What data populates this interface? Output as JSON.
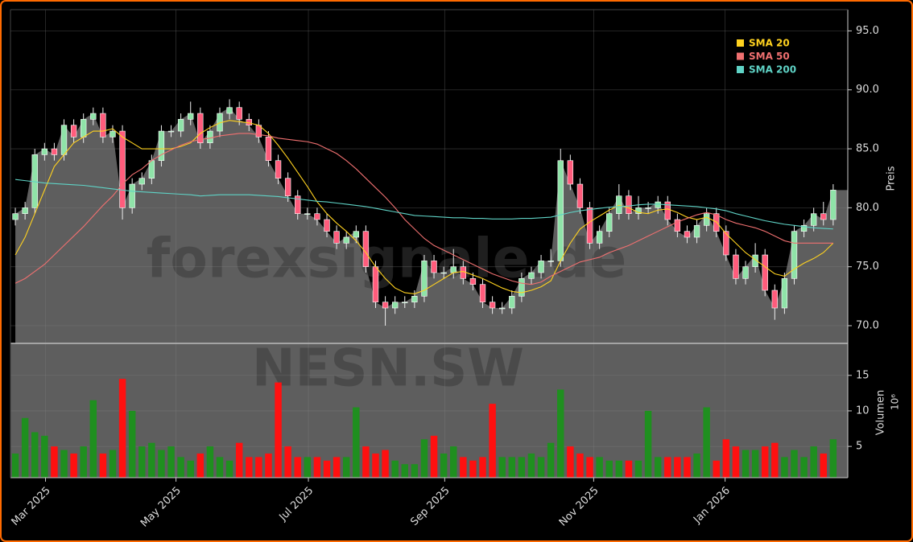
{
  "chart_data": [
    {
      "type": "candlestick",
      "open": [
        79,
        79.5,
        80,
        84.5,
        85,
        84.5,
        87,
        86,
        87.5,
        88,
        86,
        86.5,
        80,
        82,
        82.5,
        84,
        86.5,
        86.5,
        87.5,
        88,
        85.5,
        86.5,
        88,
        88.5,
        87.5,
        87,
        86,
        84,
        82.5,
        81,
        79.5,
        79.5,
        79,
        78,
        77,
        77.5,
        78,
        75,
        72,
        71.5,
        72,
        72,
        72.5,
        75.5,
        74.5,
        74.5,
        75,
        74,
        73.5,
        72,
        71.5,
        71.5,
        72.5,
        74,
        74.5,
        75.5,
        75.5,
        84,
        82,
        80,
        77,
        78,
        79.5,
        81,
        79.5,
        80,
        80,
        80.5,
        79,
        78,
        77.5,
        78.5,
        79.5,
        78,
        76,
        74,
        75,
        76,
        73,
        71.5,
        74,
        78,
        78.5,
        79.5,
        79
      ],
      "high": [
        80,
        80.5,
        85,
        85.5,
        85.5,
        87.5,
        87.5,
        88,
        88.5,
        88.5,
        87,
        87,
        82.5,
        83,
        84.5,
        87,
        87,
        88,
        89,
        88.5,
        87,
        88.5,
        89.2,
        89,
        88,
        87.5,
        86.5,
        84.5,
        83,
        81.5,
        80,
        80,
        79.5,
        78.5,
        78,
        78.5,
        78.5,
        75.5,
        72.5,
        72.5,
        72.5,
        73,
        76,
        76,
        75,
        76.5,
        75.5,
        74.5,
        74,
        72.5,
        72,
        73,
        74.5,
        75,
        76,
        76.5,
        85,
        84.5,
        82.5,
        80.5,
        78.5,
        80,
        82,
        81.5,
        81,
        80.5,
        81,
        81,
        79.5,
        78.5,
        79,
        80,
        80,
        78.5,
        76.5,
        75.5,
        77,
        76.5,
        73.5,
        74.5,
        78.5,
        79,
        80,
        80.5,
        82
      ],
      "low": [
        78.5,
        79,
        79.5,
        84,
        84,
        84,
        85.5,
        85.5,
        87,
        85.5,
        85.5,
        79,
        79.5,
        81.5,
        82,
        83.5,
        86,
        86,
        87,
        85,
        85,
        86,
        87.5,
        87,
        86.5,
        85.5,
        83.5,
        82,
        80.5,
        79,
        79,
        78.5,
        77.5,
        76.5,
        76.5,
        77,
        74.5,
        71.5,
        70,
        71,
        71.5,
        71.5,
        72,
        74,
        74,
        74,
        73.5,
        73,
        71.5,
        71,
        71,
        71,
        72,
        73.5,
        74,
        75,
        75,
        81.5,
        79.5,
        76.5,
        76.5,
        77.5,
        79,
        79,
        79,
        79.5,
        79.5,
        78.5,
        77.5,
        77,
        77,
        78,
        77.5,
        75.5,
        73.5,
        73.5,
        74.5,
        72.5,
        70.5,
        71,
        73.5,
        77.5,
        78,
        78.5,
        78.5
      ],
      "close": [
        79.5,
        80,
        84.5,
        85,
        84.5,
        87,
        86,
        87.5,
        88,
        86,
        86.5,
        80,
        82,
        82.5,
        84,
        86.5,
        86.5,
        87.5,
        88,
        85.5,
        86.5,
        88,
        88.5,
        87.5,
        87,
        86,
        84,
        82.5,
        81,
        79.5,
        79.5,
        79,
        78,
        77,
        77.5,
        78,
        75,
        72,
        71.5,
        72,
        72,
        72.5,
        75.5,
        74.5,
        74.5,
        75,
        74,
        73.5,
        72,
        71.5,
        71.5,
        72.5,
        74,
        74.5,
        75.5,
        75.5,
        84,
        82,
        80,
        77,
        78,
        79.5,
        81,
        79.5,
        80,
        80,
        80.5,
        79,
        78,
        77.5,
        78.5,
        79.5,
        78,
        76,
        74,
        75,
        76,
        73,
        71.5,
        74,
        78,
        78.5,
        79.5,
        79,
        81.5
      ],
      "up_color": "#8fe3a8",
      "down_color": "#ff5c7c",
      "area_color": "#5e5e5e",
      "series": [
        {
          "name": "SMA 20",
          "color": "#ffd21f",
          "values": [
            76,
            77.5,
            79.5,
            81.5,
            83.5,
            84.5,
            85.5,
            86,
            86.5,
            86.5,
            86.7,
            86,
            85.5,
            85,
            85,
            85,
            85,
            85.2,
            85.5,
            86.3,
            86.8,
            87.2,
            87.4,
            87.3,
            87.2,
            87,
            86.3,
            85.3,
            84.2,
            83,
            81.8,
            80.5,
            79.5,
            78.7,
            78,
            77.2,
            76.2,
            75,
            74,
            73.2,
            72.8,
            72.7,
            73,
            73.5,
            74,
            74.5,
            74.6,
            74.3,
            74,
            73.6,
            73.2,
            72.9,
            72.8,
            73,
            73.3,
            73.8,
            75.5,
            77,
            78.2,
            78.8,
            79.3,
            79.8,
            80.2,
            80,
            79.6,
            79.5,
            79.8,
            79.9,
            79.6,
            79.2,
            79,
            79.2,
            78.8,
            77.8,
            77,
            76.2,
            75.6,
            75,
            74.4,
            74.2,
            74.8,
            75.3,
            75.7,
            76.2,
            77
          ]
        },
        {
          "name": "SMA 50",
          "color": "#f07070",
          "values": [
            73.6,
            74,
            74.6,
            75.2,
            76,
            76.8,
            77.6,
            78.4,
            79.3,
            80.2,
            81,
            82,
            82.8,
            83.3,
            84,
            84.5,
            84.9,
            85.3,
            85.6,
            85.8,
            85.9,
            86.1,
            86.2,
            86.3,
            86.3,
            86.2,
            86.1,
            85.9,
            85.8,
            85.7,
            85.6,
            85.4,
            85,
            84.6,
            84,
            83.3,
            82.5,
            81.7,
            80.9,
            80,
            79,
            78.2,
            77.4,
            76.8,
            76.4,
            76,
            75.6,
            75.2,
            74.8,
            74.4,
            74.1,
            73.8,
            73.6,
            73.5,
            73.7,
            74.2,
            74.6,
            75,
            75.4,
            75.6,
            75.8,
            76.2,
            76.5,
            76.8,
            77.2,
            77.6,
            78,
            78.4,
            78.8,
            79.1,
            79.4,
            79.6,
            79.4,
            79,
            78.7,
            78.5,
            78.3,
            78,
            77.6,
            77.2,
            77,
            77,
            77,
            77,
            77
          ]
        },
        {
          "name": "SMA 200",
          "color": "#5fd3c6",
          "values": [
            82.4,
            82.3,
            82.2,
            82.1,
            82.05,
            82,
            81.95,
            81.9,
            81.8,
            81.7,
            81.6,
            81.5,
            81.4,
            81.35,
            81.3,
            81.25,
            81.2,
            81.15,
            81.1,
            81,
            81.05,
            81.1,
            81.1,
            81.1,
            81.1,
            81.05,
            81,
            80.95,
            80.85,
            80.75,
            80.65,
            80.55,
            80.5,
            80.4,
            80.3,
            80.2,
            80.1,
            79.95,
            79.8,
            79.65,
            79.5,
            79.35,
            79.3,
            79.25,
            79.2,
            79.15,
            79.15,
            79.1,
            79.1,
            79.05,
            79.05,
            79.05,
            79.1,
            79.1,
            79.15,
            79.2,
            79.4,
            79.6,
            79.75,
            79.85,
            79.95,
            80.05,
            80.1,
            80.15,
            80.25,
            80.3,
            80.3,
            80.25,
            80.2,
            80.15,
            80.1,
            80,
            79.9,
            79.75,
            79.5,
            79.3,
            79.1,
            78.9,
            78.75,
            78.6,
            78.5,
            78.4,
            78.3,
            78.25,
            78.2
          ]
        }
      ],
      "ylabel": "Preis",
      "legend": "upper right",
      "grid": true,
      "ylim": [
        68.5,
        96.8
      ],
      "yticks": [
        {
          "value": 70,
          "label": "70.0"
        },
        {
          "value": 75,
          "label": "75.0"
        },
        {
          "value": 80,
          "label": "80.0"
        },
        {
          "value": 85,
          "label": "85.0"
        },
        {
          "value": 90,
          "label": "90.0"
        },
        {
          "value": 95,
          "label": "95.0"
        }
      ],
      "xlim": [
        -0.5,
        85.5
      ],
      "xticks": [
        {
          "value": 3.1,
          "label": "Mar 2025"
        },
        {
          "value": 16.5,
          "label": "May 2025"
        },
        {
          "value": 30.1,
          "label": "Jul 2025"
        },
        {
          "value": 44.1,
          "label": "Sep 2025"
        },
        {
          "value": 59.4,
          "label": "Nov 2025"
        },
        {
          "value": 72.9,
          "label": "Jan 2026"
        }
      ],
      "watermark": "forexsignale.de"
    },
    {
      "type": "bar",
      "values": [
        4,
        9,
        7,
        6.5,
        5,
        4.5,
        4,
        5,
        11.5,
        4,
        4.5,
        14.5,
        10,
        5,
        5.5,
        4.5,
        5,
        3.5,
        3,
        4,
        5,
        3.5,
        3,
        5.5,
        3.5,
        3.5,
        4,
        14,
        5,
        3.5,
        3.5,
        3.5,
        3,
        3.5,
        3.5,
        10.5,
        5,
        4,
        4.5,
        3,
        2.5,
        2.5,
        6,
        6.5,
        4,
        5,
        3.5,
        3,
        3.5,
        11,
        3.5,
        3.5,
        3.5,
        4,
        3.5,
        5.5,
        13,
        5,
        4,
        3.5,
        3.5,
        3,
        3,
        3,
        3,
        10,
        3.5,
        3.5,
        3.5,
        3.5,
        4,
        10.5,
        3,
        6,
        5,
        4.5,
        4.5,
        5,
        5.5,
        3.5,
        4.5,
        3.5,
        5,
        4,
        6
      ],
      "up_color": "#1f8f1f",
      "down_color": "#ff1010",
      "area_color": "#5e5e5e",
      "ylabel": "Volumen",
      "offset_label": "10⁶",
      "ylim": [
        0.6,
        19.5
      ],
      "yticks": [
        5,
        10,
        15
      ],
      "watermark": "NESN.SW"
    }
  ]
}
